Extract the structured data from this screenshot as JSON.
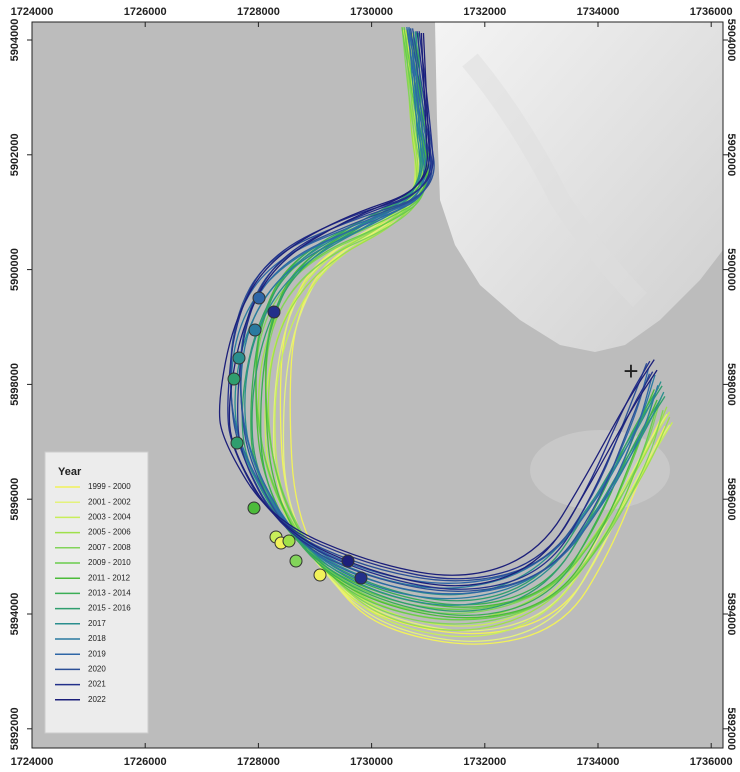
{
  "axes": {
    "xticks": [
      1724000,
      1726000,
      1728000,
      1730000,
      1732000,
      1734000,
      1736000
    ],
    "yticks": [
      5892000,
      5894000,
      5896000,
      5898000,
      5900000,
      5902000,
      5904000
    ]
  },
  "legend": {
    "title": "Year",
    "entries": [
      {
        "label": "1999 - 2000",
        "color": "#f2f25a"
      },
      {
        "label": "2001 - 2002",
        "color": "#e4f27c"
      },
      {
        "label": "2003 - 2004",
        "color": "#c8ee5a"
      },
      {
        "label": "2005 - 2006",
        "color": "#9fe04a"
      },
      {
        "label": "2007 - 2008",
        "color": "#82d45a"
      },
      {
        "label": "2009 - 2010",
        "color": "#69cc4c"
      },
      {
        "label": "2011 - 2012",
        "color": "#4cbb3a"
      },
      {
        "label": "2013 - 2014",
        "color": "#3aae55"
      },
      {
        "label": "2015 - 2016",
        "color": "#2f9e6e"
      },
      {
        "label": "2017",
        "color": "#2a8e8e"
      },
      {
        "label": "2018",
        "color": "#2a7aa0"
      },
      {
        "label": "2019",
        "color": "#2e66a6"
      },
      {
        "label": "2020",
        "color": "#2b4f96"
      },
      {
        "label": "2021",
        "color": "#23308a"
      },
      {
        "label": "2022",
        "color": "#1c1f7a"
      }
    ]
  }
}
